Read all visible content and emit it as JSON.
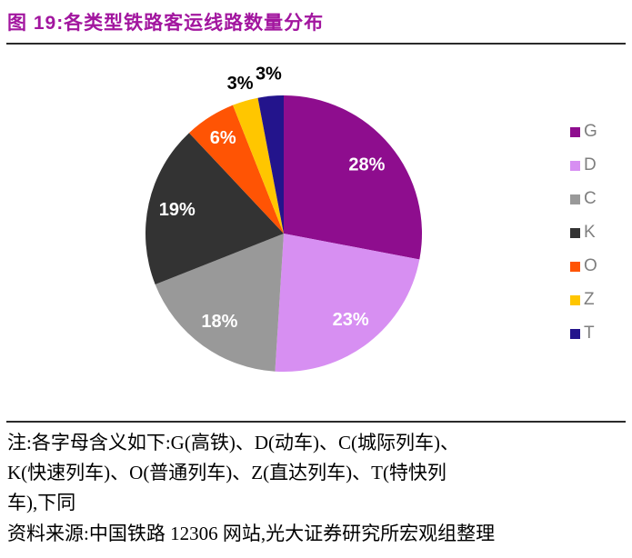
{
  "header": {
    "title": "图 19:各类型铁路客运线路数量分布"
  },
  "chart_data": {
    "type": "pie",
    "title": "各类型铁路客运线路数量分布",
    "start_angle_deg": 0,
    "direction": "clockwise",
    "legend_position": "right",
    "categories": [
      "G",
      "D",
      "C",
      "K",
      "O",
      "Z",
      "T"
    ],
    "values": [
      28,
      23,
      18,
      19,
      6,
      3,
      3
    ],
    "slices": [
      {
        "label": "G",
        "value_pct": 28,
        "pct_text": "28%",
        "color": "#8E0D8E",
        "label_color": "#FFFFFF",
        "label_r_frac": 0.78,
        "label_placement": "inside"
      },
      {
        "label": "D",
        "value_pct": 23,
        "pct_text": "23%",
        "color": "#D78FF2",
        "label_color": "#FFFFFF",
        "label_r_frac": 0.79,
        "label_placement": "inside"
      },
      {
        "label": "C",
        "value_pct": 18,
        "pct_text": "18%",
        "color": "#999999",
        "label_color": "#FFFFFF",
        "label_r_frac": 0.79,
        "label_placement": "inside"
      },
      {
        "label": "K",
        "value_pct": 19,
        "pct_text": "19%",
        "color": "#333333",
        "label_color": "#FFFFFF",
        "label_r_frac": 0.79,
        "label_placement": "inside"
      },
      {
        "label": "O",
        "value_pct": 6,
        "pct_text": "6%",
        "color": "#FF5404",
        "label_color": "#FFFFFF",
        "label_r_frac": 0.82,
        "label_placement": "inside"
      },
      {
        "label": "Z",
        "value_pct": 3,
        "pct_text": "3%",
        "color": "#FFC600",
        "label_color": "#000000",
        "label_r_frac": 1.13,
        "label_placement": "outside"
      },
      {
        "label": "T",
        "value_pct": 3,
        "pct_text": "3%",
        "color": "#23148C",
        "label_color": "#000000",
        "label_r_frac": 1.16,
        "label_placement": "outside"
      }
    ]
  },
  "notes": {
    "lines": [
      "注:各字母含义如下:G(高铁)、D(动车)、C(城际列车)、",
      "K(快速列车)、O(普通列车)、Z(直达列车)、T(特快列",
      "车),下同"
    ],
    "source": "资料来源:中国铁路 12306 网站,光大证券研究所宏观组整理"
  }
}
